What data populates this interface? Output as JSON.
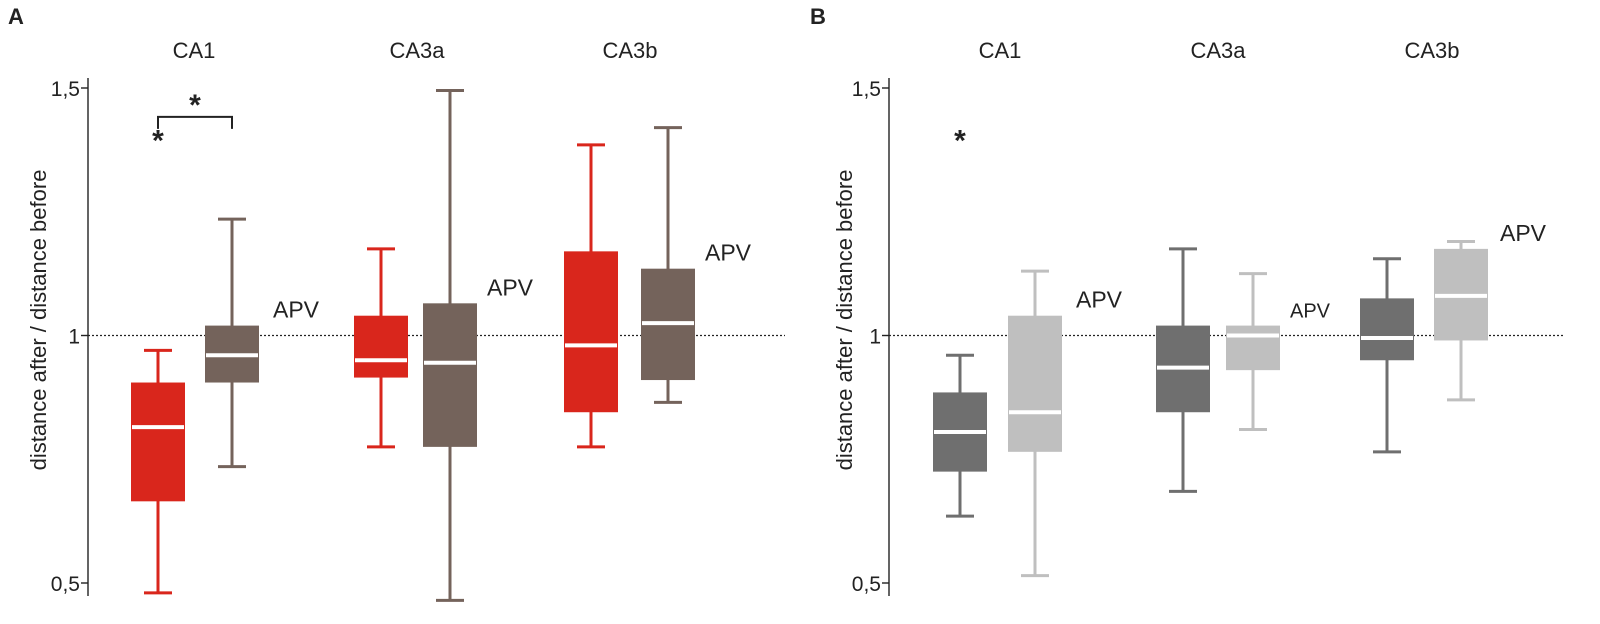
{
  "chart_data": [
    {
      "type": "box",
      "panel": "A",
      "ylabel": "distance after / distance before",
      "ylim": [
        0.5,
        1.5
      ],
      "yticks": [
        {
          "value": 0.5,
          "label": "0,5"
        },
        {
          "value": 1.0,
          "label": "1"
        },
        {
          "value": 1.5,
          "label": "1,5"
        }
      ],
      "reference_line": 1.0,
      "groups": [
        "CA1",
        "CA3a",
        "CA3b"
      ],
      "colors": {
        "control": "#d9261c",
        "apv": "#74635b",
        "median": "#ffffff"
      },
      "boxes": [
        {
          "group": "CA1",
          "series": "control",
          "min": 0.48,
          "q1": 0.665,
          "median": 0.815,
          "q3": 0.905,
          "max": 0.97,
          "label": ""
        },
        {
          "group": "CA1",
          "series": "apv",
          "min": 0.735,
          "q1": 0.905,
          "median": 0.96,
          "q3": 1.02,
          "max": 1.235,
          "label": "APV"
        },
        {
          "group": "CA3a",
          "series": "control",
          "min": 0.775,
          "q1": 0.915,
          "median": 0.95,
          "q3": 1.04,
          "max": 1.175,
          "label": ""
        },
        {
          "group": "CA3a",
          "series": "apv",
          "min": 0.465,
          "q1": 0.775,
          "median": 0.945,
          "q3": 1.065,
          "max": 1.495,
          "label": "APV"
        },
        {
          "group": "CA3b",
          "series": "control",
          "min": 0.775,
          "q1": 0.845,
          "median": 0.98,
          "q3": 1.17,
          "max": 1.385,
          "label": ""
        },
        {
          "group": "CA3b",
          "series": "apv",
          "min": 0.865,
          "q1": 0.91,
          "median": 1.025,
          "q3": 1.135,
          "max": 1.42,
          "label": "APV"
        }
      ],
      "significance": [
        {
          "type": "single",
          "at": "CA1-control",
          "value": 1.41,
          "symbol": "*"
        },
        {
          "type": "bracket",
          "between": [
            "CA1-control",
            "CA1-apv"
          ],
          "value": 1.47,
          "symbol": "*"
        }
      ]
    },
    {
      "type": "box",
      "panel": "B",
      "ylabel": "distance after / distance before",
      "ylim": [
        0.5,
        1.5
      ],
      "yticks": [
        {
          "value": 0.5,
          "label": "0,5"
        },
        {
          "value": 1.0,
          "label": "1"
        },
        {
          "value": 1.5,
          "label": "1,5"
        }
      ],
      "reference_line": 1.0,
      "groups": [
        "CA1",
        "CA3a",
        "CA3b"
      ],
      "colors": {
        "control": "#6f6f6f",
        "apv": "#bfbfbf",
        "median": "#ffffff"
      },
      "boxes": [
        {
          "group": "CA1",
          "series": "control",
          "min": 0.635,
          "q1": 0.725,
          "median": 0.805,
          "q3": 0.885,
          "max": 0.96,
          "label": ""
        },
        {
          "group": "CA1",
          "series": "apv",
          "min": 0.515,
          "q1": 0.765,
          "median": 0.845,
          "q3": 1.04,
          "max": 1.13,
          "label": "APV"
        },
        {
          "group": "CA3a",
          "series": "control",
          "min": 0.685,
          "q1": 0.845,
          "median": 0.935,
          "q3": 1.02,
          "max": 1.175,
          "label": ""
        },
        {
          "group": "CA3a",
          "series": "apv",
          "min": 0.81,
          "q1": 0.93,
          "median": 1.0,
          "q3": 1.02,
          "max": 1.125,
          "label": "APV"
        },
        {
          "group": "CA3b",
          "series": "control",
          "min": 0.765,
          "q1": 0.95,
          "median": 0.995,
          "q3": 1.075,
          "max": 1.155,
          "label": ""
        },
        {
          "group": "CA3b",
          "series": "apv",
          "min": 0.87,
          "q1": 0.99,
          "median": 1.08,
          "q3": 1.175,
          "max": 1.19,
          "label": "APV"
        }
      ],
      "significance": [
        {
          "type": "single",
          "at": "CA1-control",
          "value": 1.41,
          "symbol": "*"
        }
      ]
    }
  ]
}
